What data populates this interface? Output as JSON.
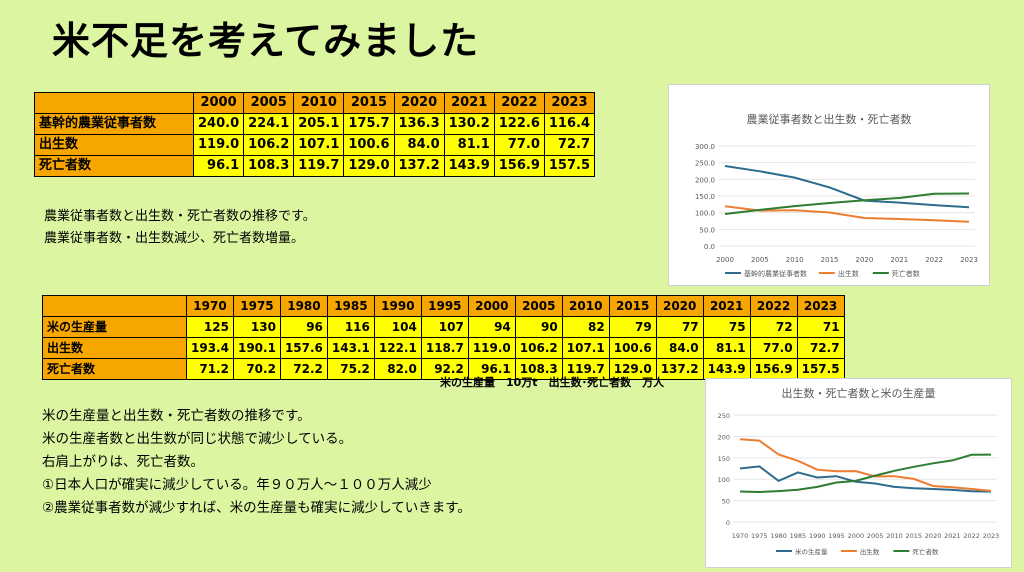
{
  "title": "米不足を考えてみました",
  "table1": {
    "years": [
      "2000",
      "2005",
      "2010",
      "2015",
      "2020",
      "2021",
      "2022",
      "2023"
    ],
    "rows": [
      {
        "label": "基幹的農業従事者数",
        "values": [
          "240.0",
          "224.1",
          "205.1",
          "175.7",
          "136.3",
          "130.2",
          "122.6",
          "116.4"
        ]
      },
      {
        "label": "出生数",
        "values": [
          "119.0",
          "106.2",
          "107.1",
          "100.6",
          "84.0",
          "81.1",
          "77.0",
          "72.7"
        ]
      },
      {
        "label": "死亡者数",
        "values": [
          "96.1",
          "108.3",
          "119.7",
          "129.0",
          "137.2",
          "143.9",
          "156.9",
          "157.5"
        ]
      }
    ]
  },
  "note1": [
    "農業従事者数と出生数・死亡者数の推移です。",
    "農業従事者数・出生数減少、死亡者数増量。"
  ],
  "table2": {
    "years": [
      "1970",
      "1975",
      "1980",
      "1985",
      "1990",
      "1995",
      "2000",
      "2005",
      "2010",
      "2015",
      "2020",
      "2021",
      "2022",
      "2023"
    ],
    "rows": [
      {
        "label": "米の生産量",
        "values": [
          "125",
          "130",
          "96",
          "116",
          "104",
          "107",
          "94",
          "90",
          "82",
          "79",
          "77",
          "75",
          "72",
          "71"
        ]
      },
      {
        "label": "出生数",
        "values": [
          "193.4",
          "190.1",
          "157.6",
          "143.1",
          "122.1",
          "118.7",
          "119.0",
          "106.2",
          "107.1",
          "100.6",
          "84.0",
          "81.1",
          "77.0",
          "72.7"
        ]
      },
      {
        "label": "死亡者数",
        "values": [
          "71.2",
          "70.2",
          "72.2",
          "75.2",
          "82.0",
          "92.2",
          "96.1",
          "108.3",
          "119.7",
          "129.0",
          "137.2",
          "143.9",
          "156.9",
          "157.5"
        ]
      }
    ]
  },
  "unit_note": "米の生産量　10万t　出生数･死亡者数　万人",
  "note2": [
    "米の生産量と出生数・死亡者数の推移です。",
    "米の生産者数と出生数が同じ状態で減少している。",
    "右肩上がりは、死亡者数。",
    "①日本人口が確実に減少している。年９０万人～１００万人減少",
    "②農業従事者数が減少すれば、米の生産量も確実に減少していきます。"
  ],
  "chart_data": [
    {
      "type": "line",
      "title": "農業従事者数と出生数・死亡者数",
      "categories": [
        "2000",
        "2005",
        "2010",
        "2015",
        "2020",
        "2021",
        "2022",
        "2023"
      ],
      "ylim": [
        0,
        300
      ],
      "yticks": [
        "0.0",
        "50.0",
        "100.0",
        "150.0",
        "200.0",
        "250.0",
        "300.0"
      ],
      "series": [
        {
          "name": "基幹的農業従事者数",
          "color": "#2e6b8f",
          "values": [
            240.0,
            224.1,
            205.1,
            175.7,
            136.3,
            130.2,
            122.6,
            116.4
          ]
        },
        {
          "name": "出生数",
          "color": "#ed7d31",
          "values": [
            119.0,
            106.2,
            107.1,
            100.6,
            84.0,
            81.1,
            77.0,
            72.7
          ]
        },
        {
          "name": "死亡者数",
          "color": "#2e7d32",
          "values": [
            96.1,
            108.3,
            119.7,
            129.0,
            137.2,
            143.9,
            156.9,
            157.5
          ]
        }
      ]
    },
    {
      "type": "line",
      "title": "出生数・死亡者数と米の生産量",
      "categories": [
        "1970",
        "1975",
        "1980",
        "1985",
        "1990",
        "1995",
        "2000",
        "2005",
        "2010",
        "2015",
        "2020",
        "2021",
        "2022",
        "2023"
      ],
      "ylim": [
        0,
        250
      ],
      "yticks": [
        "0",
        "50",
        "100",
        "150",
        "200",
        "250"
      ],
      "series": [
        {
          "name": "米の生産量",
          "color": "#2e6b8f",
          "values": [
            125,
            130,
            96,
            116,
            104,
            107,
            94,
            90,
            82,
            79,
            77,
            75,
            72,
            71
          ]
        },
        {
          "name": "出生数",
          "color": "#ed7d31",
          "values": [
            193.4,
            190.1,
            157.6,
            143.1,
            122.1,
            118.7,
            119.0,
            106.2,
            107.1,
            100.6,
            84.0,
            81.1,
            77.0,
            72.7
          ]
        },
        {
          "name": "死亡者数",
          "color": "#2e7d32",
          "values": [
            71.2,
            70.2,
            72.2,
            75.2,
            82.0,
            92.2,
            96.1,
            108.3,
            119.7,
            129.0,
            137.2,
            143.9,
            156.9,
            157.5
          ]
        }
      ]
    }
  ]
}
